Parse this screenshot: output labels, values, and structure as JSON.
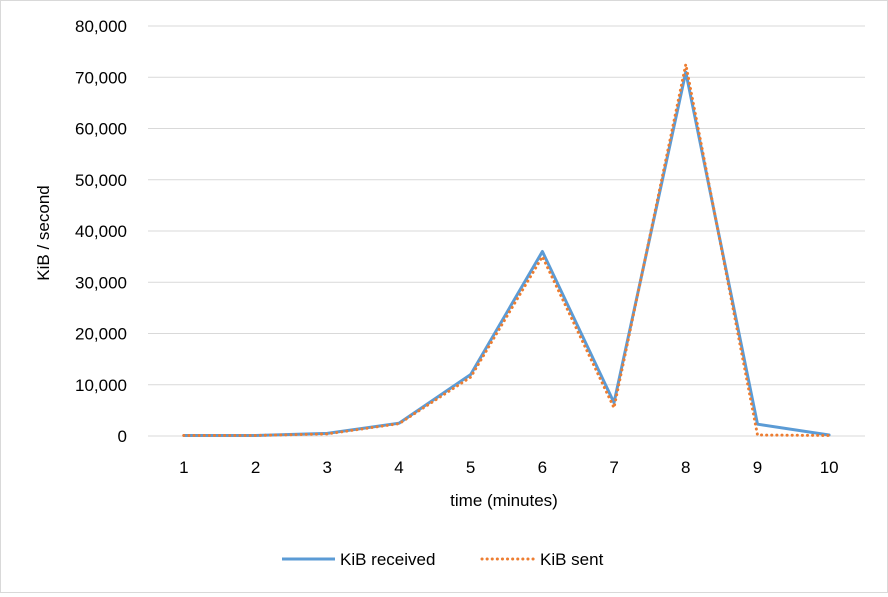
{
  "chart_data": {
    "type": "line",
    "title": "",
    "xlabel": "time (minutes)",
    "ylabel": "KiB / second",
    "categories": [
      "1",
      "2",
      "3",
      "4",
      "5",
      "6",
      "7",
      "8",
      "9",
      "10"
    ],
    "ylim": [
      0,
      80000
    ],
    "yticks": [
      "0",
      "10,000",
      "20,000",
      "30,000",
      "40,000",
      "50,000",
      "60,000",
      "70,000",
      "80,000"
    ],
    "grid": "horizontal",
    "legend_position": "bottom",
    "series": [
      {
        "name": "KiB received",
        "color": "#5B9BD5",
        "style": "solid",
        "values": [
          100,
          100,
          500,
          2500,
          12000,
          36000,
          6500,
          71000,
          2300,
          200
        ]
      },
      {
        "name": "KiB sent",
        "color": "#ED7D31",
        "style": "dotted",
        "values": [
          100,
          100,
          400,
          2400,
          11500,
          35000,
          5500,
          72500,
          200,
          100
        ]
      }
    ]
  }
}
